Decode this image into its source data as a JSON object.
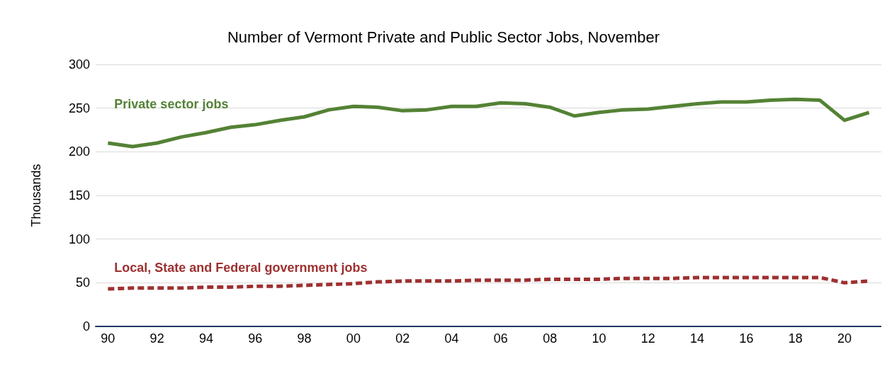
{
  "chart_data": {
    "type": "line",
    "title": "Number of Vermont Private and Public Sector Jobs, November",
    "ylabel": "Thousands",
    "categories": [
      "90",
      null,
      "92",
      null,
      "94",
      null,
      "96",
      null,
      "98",
      null,
      "00",
      null,
      "02",
      null,
      "04",
      null,
      "06",
      null,
      "08",
      null,
      "10",
      null,
      "12",
      null,
      "14",
      null,
      "16",
      null,
      "18",
      null,
      "20",
      null
    ],
    "series": [
      {
        "name": "Private sector jobs",
        "color": "#548235",
        "line_style": "solid",
        "values": [
          210,
          206,
          210,
          217,
          222,
          228,
          231,
          236,
          240,
          248,
          252,
          251,
          247,
          248,
          252,
          252,
          256,
          255,
          251,
          241,
          245,
          248,
          249,
          252,
          255,
          257,
          257,
          259,
          260,
          259,
          236,
          245
        ]
      },
      {
        "name": "Local, State and Federal government jobs",
        "color": "#9e3030",
        "line_style": "dashed",
        "values": [
          43,
          44,
          44,
          44,
          45,
          45,
          46,
          46,
          47,
          48,
          49,
          51,
          52,
          52,
          52,
          53,
          53,
          53,
          54,
          54,
          54,
          55,
          55,
          55,
          56,
          56,
          56,
          56,
          56,
          56,
          50,
          52
        ]
      }
    ],
    "ylim": [
      0,
      300
    ],
    "yticks": [
      0,
      50,
      100,
      150,
      200,
      250,
      300
    ],
    "grid": "y",
    "legend": false,
    "marker": "none"
  }
}
